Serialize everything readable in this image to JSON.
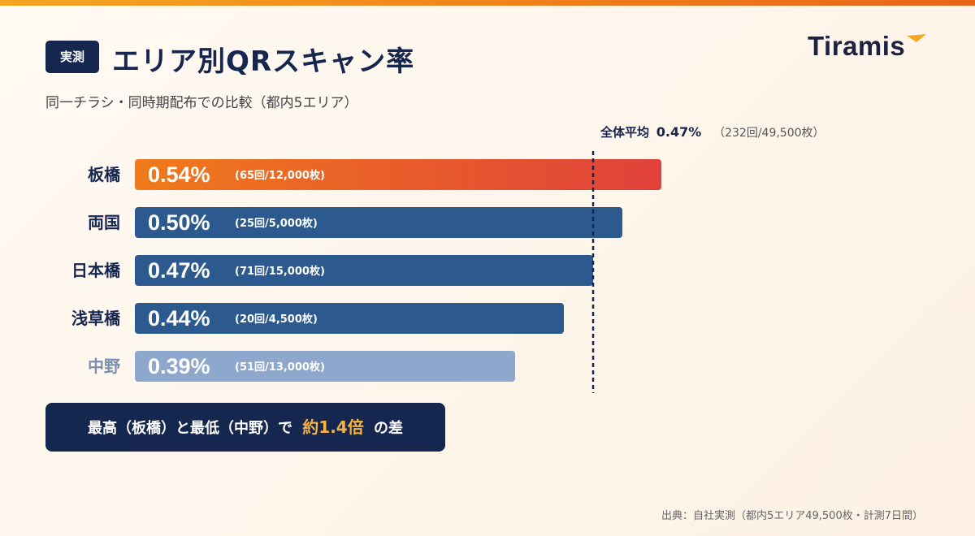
{
  "header": {
    "badge": "実測",
    "title": "エリア別QRスキャン率",
    "subtitle": "同一チラシ・同時期配布での比較（都内5エリア）",
    "logo_text": "Tiramis"
  },
  "chart_data": {
    "type": "bar",
    "orientation": "horizontal",
    "unit": "%",
    "categories": [
      "板橋",
      "両国",
      "日本橋",
      "浅草橋",
      "中野"
    ],
    "values": [
      0.54,
      0.5,
      0.47,
      0.44,
      0.39
    ],
    "value_labels": [
      "0.54%",
      "0.50%",
      "0.47%",
      "0.44%",
      "0.39%"
    ],
    "details": [
      "(65回/12,000枚)",
      "(25回/5,000枚)",
      "(71回/15,000枚)",
      "(20回/4,500枚)",
      "(51回/13,000枚)"
    ],
    "bar_styles": [
      "highlight",
      "normal",
      "normal",
      "normal",
      "muted"
    ],
    "average": {
      "label": "全体平均",
      "value": 0.47,
      "value_label": "0.47%",
      "note": "（232回/49,500枚）"
    },
    "xlim": [
      0,
      0.6
    ],
    "grid": false
  },
  "colors": {
    "highlight_start": "#f07a1b",
    "highlight_end": "#e0413a",
    "normal": "#2c5a8f",
    "muted": "#8da8cc",
    "label_normal": "#15264f",
    "label_muted": "#7b90ad",
    "avg_line": "#15264f"
  },
  "callout": {
    "prefix": "最高（板橋）と最低（中野）で",
    "highlight": "約1.4倍",
    "suffix": "の差"
  },
  "footer": {
    "source": "出典：自社実測（都内5エリア49,500枚・計測7日間）"
  }
}
